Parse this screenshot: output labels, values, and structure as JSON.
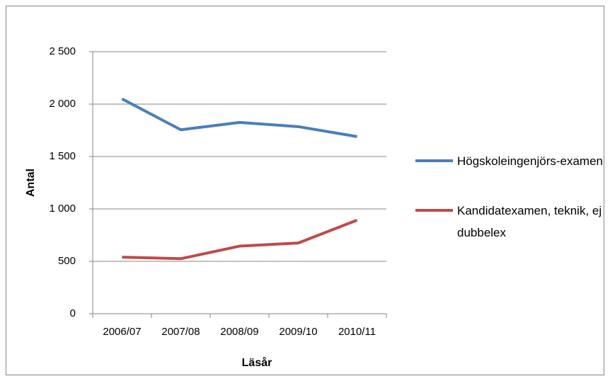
{
  "chart_data": {
    "type": "line",
    "x_label": "Läsår",
    "y_label": "Antal",
    "categories": [
      "2006/07",
      "2007/08",
      "2008/09",
      "2009/10",
      "2010/11"
    ],
    "series": [
      {
        "name": "Högskoleingenjörs-examen",
        "color": "#4a7ebb",
        "values": [
          2050,
          1755,
          1825,
          1785,
          1690
        ]
      },
      {
        "name": "Kandidatexamen, teknik, ej dubbelex",
        "color": "#be4b48",
        "values": [
          540,
          525,
          645,
          675,
          893
        ]
      }
    ],
    "ylim": [
      0,
      2500
    ],
    "yticks": [
      0,
      500,
      {
        "value": 1000,
        "label": "1 000"
      },
      {
        "value": 1500,
        "label": "1 500"
      },
      {
        "value": 2000,
        "label": "2 000"
      },
      {
        "value": 2500,
        "label": "2 500"
      }
    ],
    "grid": true,
    "legend": "right"
  }
}
